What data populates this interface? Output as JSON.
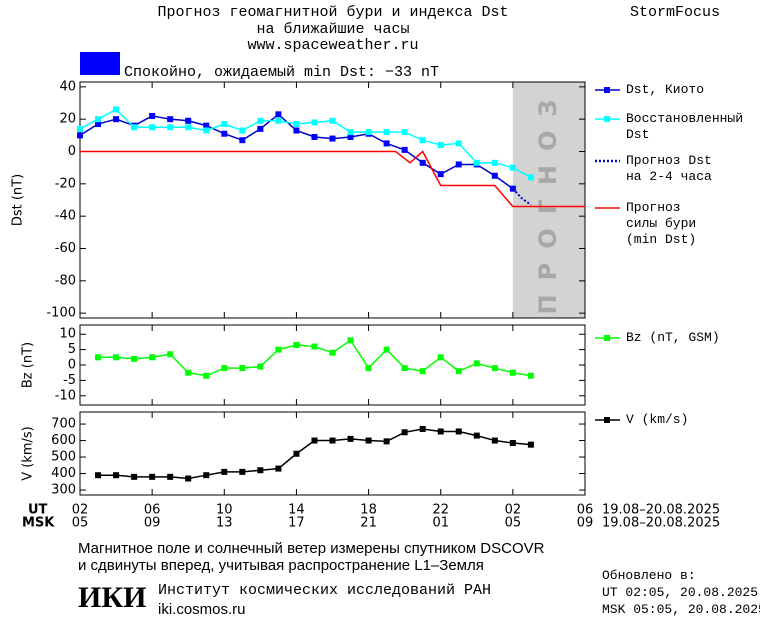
{
  "header": {
    "title_lines": [
      "Прогноз геомагнитной бури и индекса Dst",
      "на ближайшие часы"
    ],
    "url": "www.spaceweather.ru",
    "brand": "StormFocus",
    "status": {
      "text": "Спокойно, ожидаемый min Dst: −33 nT",
      "color": "#0000ff"
    }
  },
  "chart_data": [
    {
      "type": "line",
      "ylabel": "Dst (nT)",
      "xlim": [
        0,
        28
      ],
      "ylim": [
        -103,
        43
      ],
      "yticks": [
        -100,
        -80,
        -60,
        -40,
        -20,
        0,
        20,
        40
      ],
      "forecast_band": {
        "from": 24,
        "to": 28,
        "label": "ПРОГНОЗ",
        "color": "#d3d3d3"
      },
      "series": [
        {
          "name": "Dst, Киото",
          "color": "#0000cc",
          "marker_color": "#0000ff",
          "marker": "square",
          "x": [
            0,
            1,
            2,
            3,
            4,
            5,
            6,
            7,
            8,
            9,
            10,
            11,
            12,
            13,
            14,
            15,
            16,
            17,
            18,
            19,
            20,
            21,
            22,
            23,
            24
          ],
          "values": [
            10,
            17,
            20,
            16,
            22,
            20,
            19,
            16,
            11,
            7,
            14,
            23,
            13,
            9,
            8,
            9,
            11,
            5,
            1,
            -7,
            -14,
            -8,
            -8,
            -15,
            -23
          ]
        },
        {
          "name": "Восстановленный\nDst",
          "color": "#00ffff",
          "marker_color": "#00ffff",
          "marker": "square",
          "x": [
            0,
            1,
            2,
            3,
            4,
            5,
            6,
            7,
            8,
            9,
            10,
            11,
            12,
            13,
            14,
            15,
            16,
            17,
            18,
            19,
            20,
            21,
            22,
            23,
            24,
            25
          ],
          "values": [
            14,
            20,
            26,
            15,
            15,
            15,
            15,
            13,
            17,
            13,
            19,
            19,
            17,
            18,
            19,
            12,
            12,
            12,
            12,
            7,
            4,
            5,
            -7,
            -7,
            -10,
            -16
          ]
        },
        {
          "name": "Прогноз Dst\nна 2-4 часа",
          "color": "#0000cc",
          "dash": "dotted",
          "x": [
            24,
            24.5,
            25
          ],
          "values": [
            -23,
            -29,
            -33
          ]
        },
        {
          "name": "Прогноз\nсилы бури\n(min Dst)",
          "color": "#ff0000",
          "x": [
            0,
            17.5,
            18.3,
            19,
            20,
            23,
            24,
            28
          ],
          "values": [
            0,
            0,
            -7,
            0,
            -21,
            -21,
            -34,
            -34
          ]
        }
      ]
    },
    {
      "type": "line",
      "ylabel": "Bz (nT)",
      "xlim": [
        0,
        28
      ],
      "ylim": [
        -13,
        13
      ],
      "yticks": [
        -10,
        -5,
        0,
        5,
        10
      ],
      "series": [
        {
          "name": "Bz (nT, GSM)",
          "color": "#00ff00",
          "marker_color": "#00ff00",
          "marker": "square",
          "x": [
            1,
            2,
            3,
            4,
            5,
            6,
            7,
            8,
            9,
            10,
            11,
            12,
            13,
            14,
            15,
            16,
            17,
            18,
            19,
            20,
            21,
            22,
            23,
            24,
            25
          ],
          "values": [
            2.5,
            2.5,
            2,
            2.5,
            3.5,
            -2.5,
            -3.5,
            -1,
            -1,
            -0.5,
            5,
            6.5,
            6,
            4,
            8,
            -1,
            5,
            -1,
            -2,
            2.5,
            -2,
            0.5,
            -1,
            -2.5,
            -3.5
          ]
        }
      ]
    },
    {
      "type": "line",
      "ylabel": "V (km/s)",
      "xlim": [
        0,
        28
      ],
      "ylim": [
        270,
        773
      ],
      "yticks": [
        300,
        400,
        500,
        600,
        700
      ],
      "xticks": [
        {
          "value": 0,
          "label": "02"
        },
        {
          "value": 4,
          "label": "06"
        },
        {
          "value": 8,
          "label": "10"
        },
        {
          "value": 12,
          "label": "14"
        },
        {
          "value": 16,
          "label": "18"
        },
        {
          "value": 20,
          "label": "22"
        },
        {
          "value": 24,
          "label": "02"
        },
        {
          "value": 28,
          "label": "06"
        }
      ],
      "msk_labels": [
        "05",
        "09",
        "13",
        "17",
        "21",
        "01",
        "05",
        "09"
      ],
      "series": [
        {
          "name": "V (km/s)",
          "color": "#000000",
          "marker_color": "#000000",
          "marker": "square",
          "x": [
            1,
            2,
            3,
            4,
            5,
            6,
            7,
            8,
            9,
            10,
            11,
            12,
            13,
            14,
            15,
            16,
            17,
            18,
            19,
            20,
            21,
            22,
            23,
            24,
            25
          ],
          "values": [
            390,
            390,
            380,
            380,
            380,
            370,
            390,
            410,
            410,
            420,
            430,
            520,
            600,
            600,
            610,
            600,
            595,
            650,
            670,
            655,
            655,
            630,
            600,
            585,
            575
          ]
        }
      ]
    }
  ],
  "axis_rows": {
    "ut_label": "UT",
    "msk_label": "MSK",
    "ut_range": "19.08–20.08.2025",
    "msk_range": "19.08–20.08.2025"
  },
  "footer": {
    "note_lines": [
      "Магнитное поле и солнечный ветер измерены спутником DSCOVR",
      "и сдвинуты вперед, учитывая распространение L1–Земля"
    ],
    "logo": "ИКИ",
    "institute": "Институт космических исследований РАН",
    "institute_url": "iki.cosmos.ru",
    "updated": {
      "title": "Обновлено в:",
      "ut": "UT  02:05, 20.08.2025",
      "msk": "MSK 05:05, 20.08.2025"
    }
  }
}
